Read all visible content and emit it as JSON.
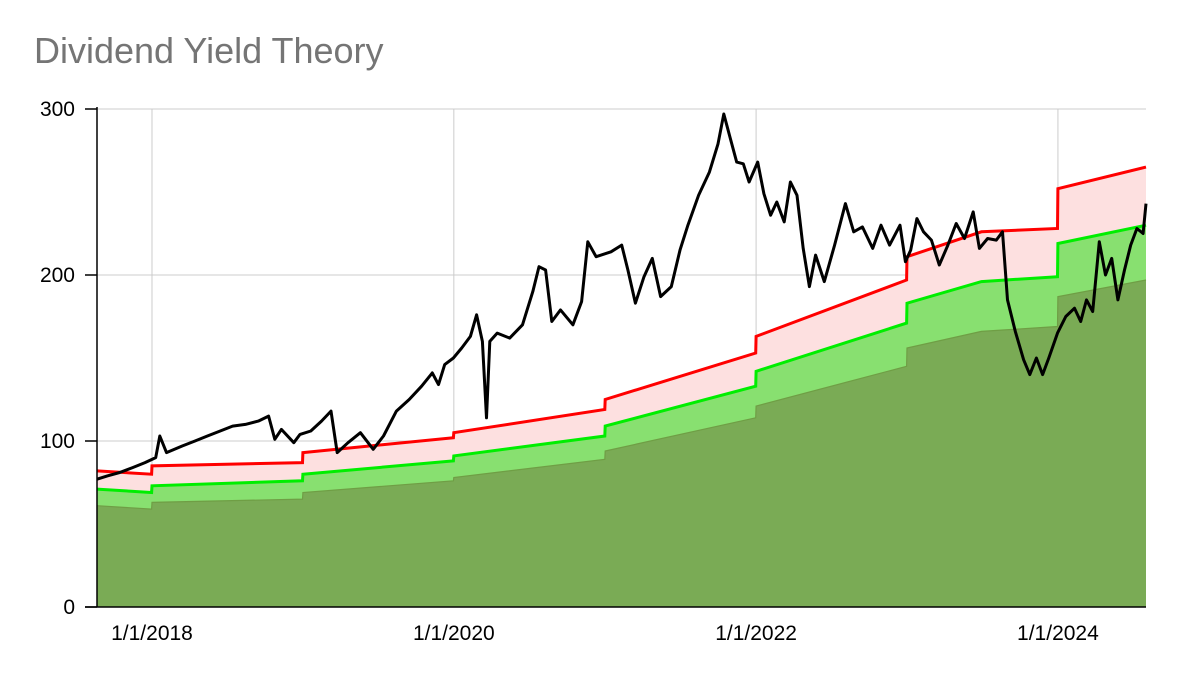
{
  "chart_data": {
    "type": "area",
    "title": "Dividend Yield Theory",
    "xlabel": "",
    "ylabel": "",
    "xlim": [
      "2017-08-21",
      "2024-08-01"
    ],
    "ylim": [
      0,
      300
    ],
    "grid": true,
    "legend": "none",
    "x_tick_labels": [
      "1/1/2018",
      "1/1/2020",
      "1/1/2022",
      "1/1/2024"
    ],
    "x_ticks": [
      "2018-01-01",
      "2020-01-01",
      "2022-01-01",
      "2024-01-01"
    ],
    "y_ticks": [
      0,
      100,
      200,
      300
    ],
    "series": [
      {
        "role": "undervalued-band-upper",
        "color": "#ff0000",
        "fill": "#fde0e0",
        "points": [
          [
            "2017-08-21",
            82
          ],
          [
            "2017-12-31",
            80
          ],
          [
            "2018-01-01",
            85
          ],
          [
            "2018-12-31",
            87
          ],
          [
            "2019-01-01",
            93
          ],
          [
            "2019-12-31",
            102
          ],
          [
            "2020-01-01",
            105
          ],
          [
            "2020-12-31",
            119
          ],
          [
            "2021-01-01",
            125
          ],
          [
            "2021-12-31",
            153
          ],
          [
            "2022-01-01",
            163
          ],
          [
            "2022-12-31",
            197
          ],
          [
            "2023-01-01",
            211
          ],
          [
            "2023-06-30",
            226
          ],
          [
            "2023-12-31",
            228
          ],
          [
            "2024-01-01",
            252
          ],
          [
            "2024-08-01",
            265
          ]
        ]
      },
      {
        "role": "fair-value",
        "color": "#00ee00",
        "fill": "#88e070",
        "points": [
          [
            "2017-08-21",
            71
          ],
          [
            "2017-12-31",
            69
          ],
          [
            "2018-01-01",
            73
          ],
          [
            "2018-12-31",
            76
          ],
          [
            "2019-01-01",
            80
          ],
          [
            "2019-12-31",
            88
          ],
          [
            "2020-01-01",
            91
          ],
          [
            "2020-12-31",
            103
          ],
          [
            "2021-01-01",
            109
          ],
          [
            "2021-12-31",
            133
          ],
          [
            "2022-01-01",
            142
          ],
          [
            "2022-12-31",
            171
          ],
          [
            "2023-01-01",
            183
          ],
          [
            "2023-06-30",
            196
          ],
          [
            "2023-12-31",
            199
          ],
          [
            "2024-01-01",
            219
          ],
          [
            "2024-08-01",
            230
          ]
        ]
      },
      {
        "role": "overvalued-band-lower",
        "color": "#6f9e45",
        "fill": "#7aab55",
        "points": [
          [
            "2017-08-21",
            61
          ],
          [
            "2017-12-31",
            59
          ],
          [
            "2018-01-01",
            63
          ],
          [
            "2018-12-31",
            65
          ],
          [
            "2019-01-01",
            69
          ],
          [
            "2019-12-31",
            76
          ],
          [
            "2020-01-01",
            78
          ],
          [
            "2020-12-31",
            89
          ],
          [
            "2021-01-01",
            94
          ],
          [
            "2021-12-31",
            114
          ],
          [
            "2022-01-01",
            121
          ],
          [
            "2022-12-31",
            145
          ],
          [
            "2023-01-01",
            156
          ],
          [
            "2023-06-30",
            166
          ],
          [
            "2023-12-31",
            169
          ],
          [
            "2024-01-01",
            187
          ],
          [
            "2024-08-01",
            197
          ]
        ]
      },
      {
        "role": "price",
        "color": "#000000",
        "points": [
          [
            "2017-08-21",
            77
          ],
          [
            "2017-09-15",
            79
          ],
          [
            "2017-10-15",
            81
          ],
          [
            "2017-11-15",
            84
          ],
          [
            "2017-12-15",
            87
          ],
          [
            "2018-01-10",
            90
          ],
          [
            "2018-01-20",
            103
          ],
          [
            "2018-02-05",
            93
          ],
          [
            "2018-03-15",
            97
          ],
          [
            "2018-04-15",
            100
          ],
          [
            "2018-05-15",
            103
          ],
          [
            "2018-06-15",
            106
          ],
          [
            "2018-07-15",
            109
          ],
          [
            "2018-08-15",
            110
          ],
          [
            "2018-09-15",
            112
          ],
          [
            "2018-10-10",
            115
          ],
          [
            "2018-10-25",
            101
          ],
          [
            "2018-11-10",
            107
          ],
          [
            "2018-12-10",
            99
          ],
          [
            "2018-12-25",
            104
          ],
          [
            "2019-01-20",
            106
          ],
          [
            "2019-02-15",
            112
          ],
          [
            "2019-03-10",
            118
          ],
          [
            "2019-03-25",
            93
          ],
          [
            "2019-04-20",
            99
          ],
          [
            "2019-05-20",
            105
          ],
          [
            "2019-06-20",
            95
          ],
          [
            "2019-07-15",
            103
          ],
          [
            "2019-08-15",
            118
          ],
          [
            "2019-09-15",
            125
          ],
          [
            "2019-10-15",
            133
          ],
          [
            "2019-11-10",
            141
          ],
          [
            "2019-11-25",
            134
          ],
          [
            "2019-12-10",
            146
          ],
          [
            "2019-12-31",
            150
          ],
          [
            "2020-01-20",
            156
          ],
          [
            "2020-02-10",
            163
          ],
          [
            "2020-02-25",
            176
          ],
          [
            "2020-03-10",
            160
          ],
          [
            "2020-03-20",
            114
          ],
          [
            "2020-03-28",
            160
          ],
          [
            "2020-04-15",
            165
          ],
          [
            "2020-05-15",
            162
          ],
          [
            "2020-06-15",
            170
          ],
          [
            "2020-07-10",
            190
          ],
          [
            "2020-07-25",
            205
          ],
          [
            "2020-08-10",
            203
          ],
          [
            "2020-08-25",
            172
          ],
          [
            "2020-09-15",
            179
          ],
          [
            "2020-10-15",
            170
          ],
          [
            "2020-11-05",
            184
          ],
          [
            "2020-11-20",
            220
          ],
          [
            "2020-12-10",
            211
          ],
          [
            "2021-01-15",
            214
          ],
          [
            "2021-02-10",
            218
          ],
          [
            "2021-02-25",
            203
          ],
          [
            "2021-03-15",
            183
          ],
          [
            "2021-04-05",
            199
          ],
          [
            "2021-04-25",
            210
          ],
          [
            "2021-05-15",
            187
          ],
          [
            "2021-06-10",
            193
          ],
          [
            "2021-07-01",
            215
          ],
          [
            "2021-07-20",
            230
          ],
          [
            "2021-08-15",
            248
          ],
          [
            "2021-09-10",
            262
          ],
          [
            "2021-10-01",
            279
          ],
          [
            "2021-10-15",
            297
          ],
          [
            "2021-10-30",
            283
          ],
          [
            "2021-11-15",
            268
          ],
          [
            "2021-12-01",
            267
          ],
          [
            "2021-12-15",
            256
          ],
          [
            "2022-01-05",
            268
          ],
          [
            "2022-01-20",
            249
          ],
          [
            "2022-02-05",
            236
          ],
          [
            "2022-02-20",
            244
          ],
          [
            "2022-03-10",
            232
          ],
          [
            "2022-03-25",
            256
          ],
          [
            "2022-04-10",
            248
          ],
          [
            "2022-04-25",
            216
          ],
          [
            "2022-05-10",
            193
          ],
          [
            "2022-05-25",
            212
          ],
          [
            "2022-06-15",
            196
          ],
          [
            "2022-07-10",
            218
          ],
          [
            "2022-08-05",
            243
          ],
          [
            "2022-08-25",
            226
          ],
          [
            "2022-09-15",
            229
          ],
          [
            "2022-10-10",
            216
          ],
          [
            "2022-10-30",
            230
          ],
          [
            "2022-11-20",
            218
          ],
          [
            "2022-12-15",
            230
          ],
          [
            "2022-12-28",
            208
          ],
          [
            "2023-01-10",
            215
          ],
          [
            "2023-01-25",
            234
          ],
          [
            "2023-02-10",
            226
          ],
          [
            "2023-03-01",
            221
          ],
          [
            "2023-03-20",
            206
          ],
          [
            "2023-04-10",
            218
          ],
          [
            "2023-04-30",
            231
          ],
          [
            "2023-05-20",
            222
          ],
          [
            "2023-06-10",
            238
          ],
          [
            "2023-06-25",
            216
          ],
          [
            "2023-07-15",
            222
          ],
          [
            "2023-08-05",
            221
          ],
          [
            "2023-08-20",
            226
          ],
          [
            "2023-09-01",
            185
          ],
          [
            "2023-09-20",
            166
          ],
          [
            "2023-10-10",
            149
          ],
          [
            "2023-10-25",
            140
          ],
          [
            "2023-11-10",
            150
          ],
          [
            "2023-11-25",
            140
          ],
          [
            "2023-12-10",
            150
          ],
          [
            "2023-12-31",
            165
          ],
          [
            "2024-01-20",
            175
          ],
          [
            "2024-02-10",
            180
          ],
          [
            "2024-02-25",
            172
          ],
          [
            "2024-03-10",
            185
          ],
          [
            "2024-03-25",
            178
          ],
          [
            "2024-04-10",
            220
          ],
          [
            "2024-04-25",
            200
          ],
          [
            "2024-05-10",
            210
          ],
          [
            "2024-05-25",
            185
          ],
          [
            "2024-06-10",
            203
          ],
          [
            "2024-06-25",
            218
          ],
          [
            "2024-07-10",
            228
          ],
          [
            "2024-07-25",
            225
          ],
          [
            "2024-08-01",
            243
          ]
        ]
      }
    ]
  }
}
